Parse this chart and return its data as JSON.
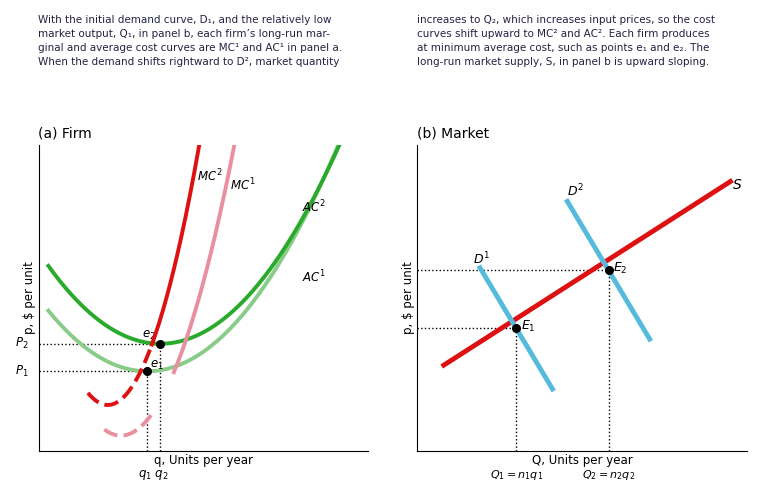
{
  "fig_width": 7.7,
  "fig_height": 5.01,
  "dpi": 100,
  "panel_a_title": "(a) Firm",
  "panel_b_title": "(b) Market",
  "ylabel_firm": "p, $ per unit",
  "ylabel_market": "p, $ per unit",
  "xlabel_firm": "q, Units per year",
  "xlabel_market": "Q, Units per year",
  "color_dark_green": "#2aaa2a",
  "color_light_green": "#88cc88",
  "color_red": "#dd1111",
  "color_pink": "#e890a0",
  "color_blue": "#55bbdd",
  "text_color": "#222244",
  "paragraph_text_left": "With the initial demand curve, D₁, and the relatively low\nmarket output, Q₁, in panel b, each firm’s long-run mar-\nginal and average cost curves are MC¹ and AC¹ in panel a.\nWhen the demand shifts rightward to D², market quantity",
  "paragraph_text_right": "increases to Q₂, which increases input prices, so the cost\ncurves shift upward to MC² and AC². Each firm produces\nat minimum average cost, such as points e₁ and e₂. The\nlong-run market supply, S, in panel b is upward sloping."
}
